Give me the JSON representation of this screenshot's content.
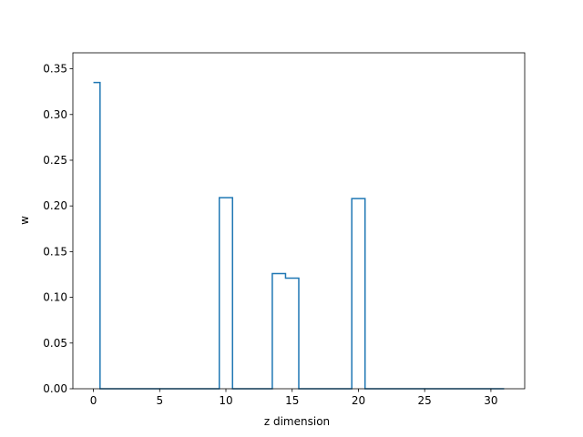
{
  "chart_data": {
    "type": "line",
    "drawstyle": "steps-mid",
    "title": "",
    "xlabel": "z dimension",
    "ylabel": "w",
    "xlim": [
      -1.55,
      32.55
    ],
    "ylim": [
      0.0,
      0.3675
    ],
    "xticks": [
      0,
      5,
      10,
      15,
      20,
      25,
      30
    ],
    "xtick_labels": [
      "0",
      "5",
      "10",
      "15",
      "20",
      "25",
      "30"
    ],
    "yticks": [
      0.0,
      0.05,
      0.1,
      0.15,
      0.2,
      0.25,
      0.3,
      0.35
    ],
    "ytick_labels": [
      "0.00",
      "0.05",
      "0.10",
      "0.15",
      "0.20",
      "0.25",
      "0.30",
      "0.35"
    ],
    "grid": false,
    "series": [
      {
        "color": "#1f77b4",
        "x": [
          0,
          1,
          2,
          3,
          4,
          5,
          6,
          7,
          8,
          9,
          10,
          11,
          12,
          13,
          14,
          15,
          16,
          17,
          18,
          19,
          20,
          21,
          22,
          23,
          24,
          25,
          26,
          27,
          28,
          29,
          30,
          31
        ],
        "y": [
          0.335,
          0,
          0,
          0,
          0,
          0,
          0,
          0,
          0,
          0,
          0.209,
          0,
          0,
          0,
          0.126,
          0.121,
          0,
          0,
          0,
          0,
          0.208,
          0,
          0,
          0,
          0,
          0,
          0,
          0,
          0,
          0,
          0,
          0
        ]
      }
    ]
  }
}
